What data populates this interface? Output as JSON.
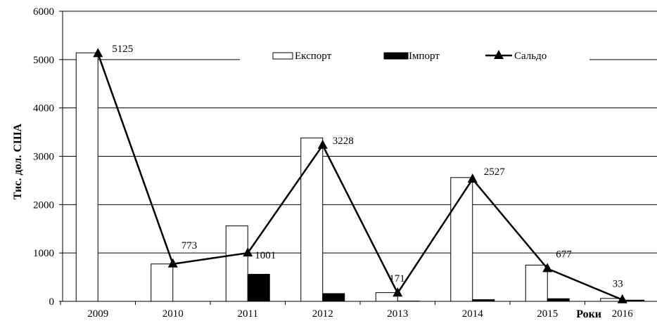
{
  "chart_data": {
    "type": "bar",
    "categories": [
      "2009",
      "2010",
      "2011",
      "2012",
      "2013",
      "2014",
      "2015",
      "2016"
    ],
    "series": [
      {
        "name": "Експорт",
        "kind": "bar",
        "color": "#ffffff",
        "stroke": "#000000",
        "values": [
          5140,
          773,
          1560,
          3380,
          180,
          2560,
          750,
          60
        ]
      },
      {
        "name": "Імпорт",
        "kind": "bar",
        "color": "#000000",
        "stroke": "#000000",
        "values": [
          0,
          0,
          560,
          160,
          5,
          35,
          55,
          25
        ]
      },
      {
        "name": "Сальдо",
        "kind": "line",
        "color": "#000000",
        "marker": "triangle",
        "values": [
          5125,
          773,
          1001,
          3228,
          171,
          2527,
          677,
          33
        ],
        "labels": [
          "5125",
          "773",
          "1001",
          "3228",
          "171",
          "2527",
          "677",
          "33"
        ]
      }
    ],
    "ylabel": "Тис. дол. США",
    "xlabel": "Роки",
    "ylim": [
      0,
      6000
    ],
    "yticks": [
      "0",
      "1000",
      "2000",
      "3000",
      "4000",
      "5000",
      "6000"
    ],
    "grid": true,
    "legend_position": "top-right"
  }
}
